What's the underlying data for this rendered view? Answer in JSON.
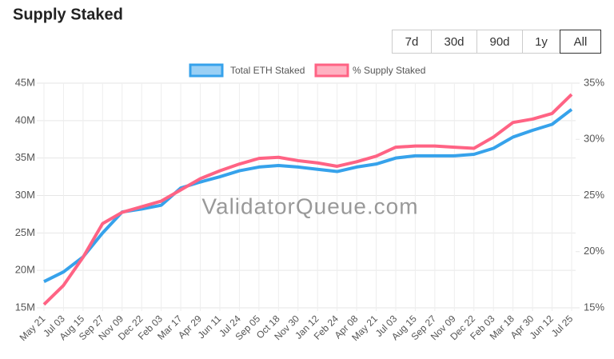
{
  "chart_data": {
    "type": "line",
    "title": "Supply Staked",
    "range_buttons": [
      "7d",
      "30d",
      "90d",
      "1y",
      "All"
    ],
    "selected_range": "All",
    "watermark": "ValidatorQueue.com",
    "categories": [
      "May 21",
      "Jul 03",
      "Aug 15",
      "Sep 27",
      "Nov 09",
      "Dec 22",
      "Feb 03",
      "Mar 17",
      "Apr 29",
      "Jun 11",
      "Jul 24",
      "Sep 05",
      "Oct 18",
      "Nov 30",
      "Jan 12",
      "Feb 24",
      "Apr 08",
      "May 21",
      "Jul 03",
      "Aug 15",
      "Sep 27",
      "Nov 09",
      "Dec 22",
      "Feb 03",
      "Mar 18",
      "Apr 30",
      "Jun 12",
      "Jul 25"
    ],
    "series": [
      {
        "name": "Total ETH Staked",
        "color": "#36a2eb",
        "fill": "#9ad0f5",
        "axis": "y",
        "values": [
          18500000,
          19800000,
          21800000,
          25000000,
          27800000,
          28200000,
          28700000,
          31000000,
          31800000,
          32500000,
          33300000,
          33800000,
          34000000,
          33800000,
          33500000,
          33200000,
          33800000,
          34200000,
          35000000,
          35300000,
          35300000,
          35300000,
          35500000,
          36300000,
          37800000,
          38700000,
          39500000,
          41500000
        ]
      },
      {
        "name": "% Supply Staked",
        "color": "#ff6384",
        "fill": "#ffb1c1",
        "axis": "y2",
        "values": [
          15.3,
          17,
          19.5,
          22.5,
          23.5,
          24,
          24.5,
          25.5,
          26.5,
          27.2,
          27.8,
          28.3,
          28.4,
          28.1,
          27.9,
          27.6,
          28,
          28.5,
          29.3,
          29.4,
          29.4,
          29.3,
          29.2,
          30.2,
          31.5,
          31.8,
          32.3,
          34
        ]
      }
    ],
    "ylim": [
      15000000,
      45000000
    ],
    "yticks": [
      {
        "value": 15000000,
        "label": "15M"
      },
      {
        "value": 20000000,
        "label": "20M"
      },
      {
        "value": 25000000,
        "label": "25M"
      },
      {
        "value": 30000000,
        "label": "30M"
      },
      {
        "value": 35000000,
        "label": "35M"
      },
      {
        "value": 40000000,
        "label": "40M"
      },
      {
        "value": 45000000,
        "label": "45M"
      }
    ],
    "y2lim": [
      15,
      35
    ],
    "y2ticks": [
      {
        "value": 15,
        "label": "15%"
      },
      {
        "value": 20,
        "label": "20%"
      },
      {
        "value": 25,
        "label": "25%"
      },
      {
        "value": 30,
        "label": "30%"
      },
      {
        "value": 35,
        "label": "35%"
      }
    ],
    "grid": true
  }
}
